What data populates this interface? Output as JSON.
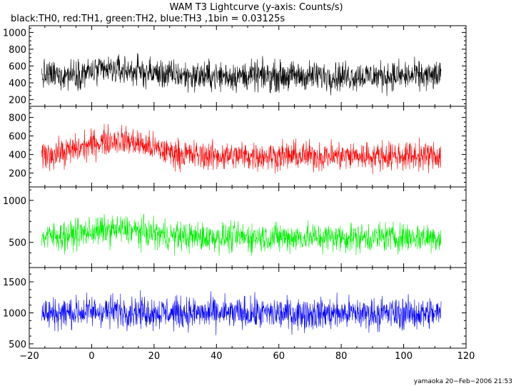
{
  "chart_data": {
    "type": "line",
    "title": "WAM T3 Lightcurve (y-axis: Counts/s)",
    "subtitle_segments": [
      {
        "text": "black:",
        "color": "#000000"
      },
      {
        "text": "TH0",
        "color": "#000000"
      },
      {
        "text": ", red:",
        "color": "#000000"
      },
      {
        "text": "TH1",
        "color": "#000000"
      },
      {
        "text": ", green:",
        "color": "#000000"
      },
      {
        "text": "TH2",
        "color": "#000000"
      },
      {
        "text": ", blue:",
        "color": "#000000"
      },
      {
        "text": "TH3",
        "color": "#000000"
      },
      {
        "text": " ,1bin = 0.03125s",
        "color": "#000000"
      }
    ],
    "xlim": [
      -20,
      120
    ],
    "data_x_range": [
      -16,
      112
    ],
    "x_ticks": [
      -20,
      0,
      20,
      40,
      60,
      80,
      100,
      120
    ],
    "x_tick_labels": [
      "−20",
      "0",
      "20",
      "40",
      "60",
      "80",
      "100",
      "120"
    ],
    "grid": false,
    "panels": [
      {
        "name": "TH0",
        "color": "#000000",
        "ylim": [
          120,
          1080
        ],
        "y_ticks": [
          200,
          400,
          600,
          800,
          1000
        ],
        "y_tick_labels": [
          "200",
          "400",
          "600",
          "800",
          "1000"
        ],
        "mean": 480,
        "noise_amplitude": 260,
        "bump": {
          "center": 8,
          "width": 14,
          "height": 70
        }
      },
      {
        "name": "TH1",
        "color": "#ff0000",
        "ylim": [
          50,
          920
        ],
        "y_ticks": [
          200,
          400,
          600,
          800
        ],
        "y_tick_labels": [
          "200",
          "400",
          "600",
          "800"
        ],
        "mean": 385,
        "noise_amplitude": 230,
        "bump": {
          "center": 8,
          "width": 14,
          "height": 170
        }
      },
      {
        "name": "TH2",
        "color": "#00ee00",
        "ylim": [
          200,
          1160
        ],
        "y_ticks": [
          500,
          1000
        ],
        "y_tick_labels": [
          "500",
          "1000"
        ],
        "mean": 560,
        "noise_amplitude": 260,
        "bump": {
          "center": 8,
          "width": 14,
          "height": 90
        }
      },
      {
        "name": "TH3",
        "color": "#0000ff",
        "ylim": [
          430,
          1730
        ],
        "y_ticks": [
          500,
          1000,
          1500
        ],
        "y_tick_labels": [
          "500",
          "1000",
          "1500"
        ],
        "mean": 990,
        "noise_amplitude": 380,
        "bump": {
          "center": 8,
          "width": 14,
          "height": 40
        }
      }
    ],
    "footer": "yamaoka 20−Feb−2006 21:53"
  }
}
